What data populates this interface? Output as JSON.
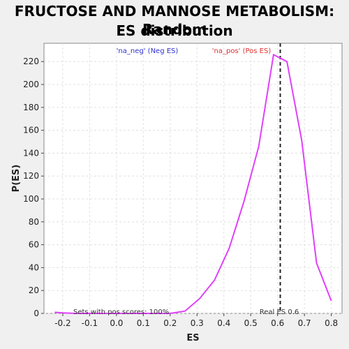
{
  "chart_data": {
    "type": "line",
    "title_line1": "FRUCTOSE AND MANNOSE METABOLISM: Random",
    "title_line2": "ES distribution",
    "xlabel": "ES",
    "ylabel": "P(ES)",
    "xlim": [
      -0.27,
      0.84
    ],
    "ylim": [
      0,
      236
    ],
    "xticks": [
      -0.2,
      -0.1,
      0.0,
      0.1,
      0.2,
      0.3,
      0.4,
      0.5,
      0.6,
      0.7,
      0.8
    ],
    "xtick_labels": [
      "-0.2",
      "-0.1",
      "0.0",
      "0.1",
      "0.2",
      "0.3",
      "0.4",
      "0.5",
      "0.6",
      "0.7",
      "0.8"
    ],
    "yticks": [
      0,
      20,
      40,
      60,
      80,
      100,
      120,
      140,
      160,
      180,
      200,
      220
    ],
    "grid": true,
    "series": [
      {
        "color": "#e040fb",
        "x": [
          -0.23,
          -0.2,
          -0.15,
          -0.1,
          -0.05,
          0.0,
          0.05,
          0.1,
          0.15,
          0.2,
          0.255,
          0.31,
          0.365,
          0.42,
          0.475,
          0.53,
          0.585,
          0.635,
          0.69,
          0.745,
          0.8
        ],
        "y": [
          1,
          0.5,
          0,
          0,
          0,
          0,
          0,
          0,
          0,
          0,
          2,
          13,
          29,
          57,
          98,
          146,
          226,
          220,
          151,
          44,
          11
        ]
      }
    ],
    "real_es": 0.61,
    "annotations": {
      "neg_label": "'na_neg' (Neg ES)",
      "pos_label": "'na_pos' (Pos ES)",
      "pos_scores": "Sets with pos scores: 100%",
      "real_es": "Real ES 0.6"
    },
    "colors": {
      "neg": "#3030d0",
      "pos": "#e03030",
      "line": "#e040fb"
    }
  }
}
